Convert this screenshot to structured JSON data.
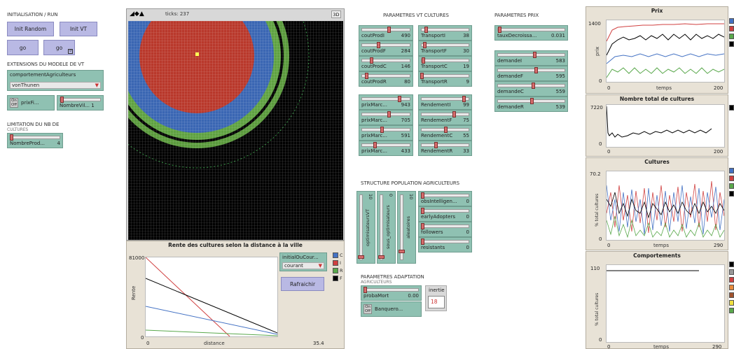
{
  "left": {
    "section_run": "INITIALISATION / RUN",
    "btn_init_random": "Init Random",
    "btn_init_vt": "Init VT",
    "btn_go1": "go",
    "btn_go2": "go",
    "section_ext": "EXTENSIONS DU MODELE DE VT",
    "chooser_label": "comportementAgriculteurs",
    "chooser_value": "vonThunen",
    "switch_label": "prixFi...",
    "switch_on": "On",
    "switch_off": "Off",
    "slider_nbvil": "NombreVil... 1",
    "section_limit": "LIMITATION DU NB DE",
    "section_limit2": "CULTURES",
    "slider_nbprod_label": "NombreProd...",
    "slider_nbprod_value": "4"
  },
  "world": {
    "ticks_label": "ticks: 237",
    "view3d": "3D"
  },
  "rente": {
    "title": "Rente des cultures selon la distance à la ville",
    "ymax": "81000",
    "ymin": "0",
    "xmin": "0",
    "xmax": "35.4",
    "xlabel": "distance",
    "ylabel": "Rente",
    "chooser_label": "initialOuCour...",
    "chooser_value": "courant",
    "btn_refresh": "Rafraichir",
    "legend": [
      "C",
      "I",
      "R",
      "F"
    ],
    "colors": {
      "C": "#4472c4",
      "I": "#d04040",
      "R": "#59a84b",
      "F": "#000000"
    }
  },
  "vt": {
    "title": "PARAMETRES VT CULTURES",
    "left_sliders": [
      {
        "label": "coutProdI",
        "value": "490"
      },
      {
        "label": "coutProdF",
        "value": "284"
      },
      {
        "label": "coutProdC",
        "value": "146"
      },
      {
        "label": "coutProdR",
        "value": "80"
      },
      {
        "label": "prixMarc...",
        "value": "943"
      },
      {
        "label": "prixMarc...",
        "value": "705"
      },
      {
        "label": "prixMarc...",
        "value": "591"
      },
      {
        "label": "prixMarc...",
        "value": "433"
      }
    ],
    "right_sliders": [
      {
        "label": "TransportI",
        "value": "38"
      },
      {
        "label": "TransportF",
        "value": "30"
      },
      {
        "label": "TransportC",
        "value": "19"
      },
      {
        "label": "TransportR",
        "value": "9"
      },
      {
        "label": "RendementI",
        "value": "99"
      },
      {
        "label": "RendementF",
        "value": "75"
      },
      {
        "label": "RendementC",
        "value": "55"
      },
      {
        "label": "RendementR",
        "value": "33"
      }
    ]
  },
  "prix_params": {
    "title": "PARAMETRES PRIX",
    "taux_label": "tauxDecroissa...",
    "taux_value": "0.031",
    "sliders": [
      {
        "label": "demandeI",
        "value": "583"
      },
      {
        "label": "demandeF",
        "value": "595"
      },
      {
        "label": "demandeC",
        "value": "559"
      },
      {
        "label": "demandeR",
        "value": "539"
      }
    ]
  },
  "structure": {
    "title": "STRUCTURE POPULATION AGRICULTEURS",
    "vsliders": [
      {
        "label": "optimisateursVT",
        "value": "10"
      },
      {
        "label": "sous_optimisateurs",
        "value": "0"
      },
      {
        "label": "aleatoires",
        "value": "10"
      }
    ],
    "sliders": [
      {
        "label": "obsIntelligen...",
        "value": "0"
      },
      {
        "label": "earlyAdopters",
        "value": "0"
      },
      {
        "label": "followers",
        "value": "0"
      },
      {
        "label": "resistants",
        "value": "0"
      }
    ]
  },
  "adaptation": {
    "title": "PARAMETRES ADAPTATION",
    "title2": "AGRICULTEURS",
    "proba_label": "probaMort",
    "proba_value": "0.00",
    "switch_label": "Banquero...",
    "switch_on": "On",
    "switch_off": "Off",
    "inertie_label": "inertie",
    "inertie_value": "18"
  },
  "plots": {
    "prix": {
      "title": "Prix",
      "ymax": "1400",
      "ymin": "0",
      "xmin": "0",
      "xmax": "200",
      "xlabel": "temps",
      "ylabel": "prix"
    },
    "nb": {
      "title": "Nombre total de cultures",
      "ymax": "7220",
      "ymin": "0",
      "xmin": "0",
      "xmax": "200"
    },
    "cult": {
      "title": "Cultures",
      "ymax": "70.2",
      "ymin": "0",
      "xmin": "0",
      "xmax": "290",
      "xlabel": "temps",
      "ylabel": "% total cultures"
    },
    "comp": {
      "title": "Comportements",
      "ymax": "110",
      "ymin": "0",
      "xmin": "0",
      "xmax": "290",
      "xlabel": "temps",
      "ylabel": "% total cultures"
    }
  }
}
